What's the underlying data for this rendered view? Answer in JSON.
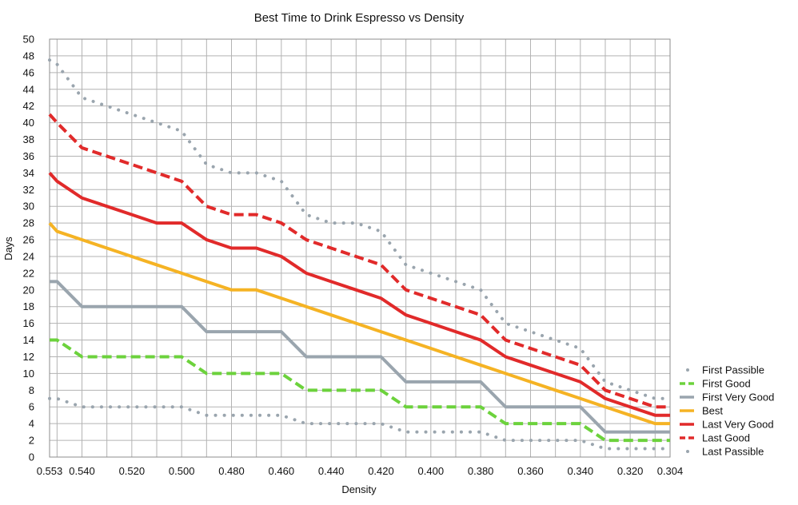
{
  "chart_data": {
    "type": "line",
    "title": "Best Time to Drink Espresso vs Density",
    "xlabel": "Density",
    "ylabel": "Days",
    "xlim": [
      0.553,
      0.304
    ],
    "ylim": [
      0,
      50
    ],
    "grid": true,
    "legend_position": "right",
    "x": [
      0.553,
      0.55,
      0.54,
      0.53,
      0.52,
      0.51,
      0.5,
      0.49,
      0.48,
      0.47,
      0.46,
      0.45,
      0.44,
      0.43,
      0.42,
      0.41,
      0.4,
      0.39,
      0.38,
      0.37,
      0.36,
      0.35,
      0.34,
      0.33,
      0.32,
      0.31,
      0.304
    ],
    "x_tick_labels": [
      "0.553",
      "0.540",
      "0.520",
      "0.500",
      "0.480",
      "0.460",
      "0.440",
      "0.420",
      "0.400",
      "0.380",
      "0.360",
      "0.340",
      "0.320",
      "0.304"
    ],
    "x_tick_values": [
      0.553,
      0.54,
      0.52,
      0.5,
      0.48,
      0.46,
      0.44,
      0.42,
      0.4,
      0.38,
      0.36,
      0.34,
      0.32,
      0.304
    ],
    "y_tick_labels": [
      "0",
      "2",
      "4",
      "6",
      "8",
      "10",
      "12",
      "14",
      "16",
      "18",
      "20",
      "22",
      "24",
      "26",
      "28",
      "30",
      "32",
      "34",
      "36",
      "38",
      "40",
      "42",
      "44",
      "46",
      "48",
      "50"
    ],
    "series": [
      {
        "name": "First Passible",
        "color": "#9aa5ae",
        "style": "dotted-light",
        "values": [
          7,
          7,
          6,
          6,
          6,
          6,
          6,
          5,
          5,
          5,
          5,
          4,
          4,
          4,
          4,
          3,
          3,
          3,
          3,
          2,
          2,
          2,
          2,
          1,
          1,
          1,
          1
        ]
      },
      {
        "name": "First Good",
        "color": "#6cd23c",
        "style": "dashed",
        "values": [
          14,
          14,
          12,
          12,
          12,
          12,
          12,
          10,
          10,
          10,
          10,
          8,
          8,
          8,
          8,
          6,
          6,
          6,
          6,
          4,
          4,
          4,
          4,
          2,
          2,
          2,
          2
        ]
      },
      {
        "name": "First Very Good",
        "color": "#9aa5ae",
        "style": "solid",
        "values": [
          21,
          21,
          18,
          18,
          18,
          18,
          18,
          15,
          15,
          15,
          15,
          12,
          12,
          12,
          12,
          9,
          9,
          9,
          9,
          6,
          6,
          6,
          6,
          3,
          3,
          3,
          3
        ]
      },
      {
        "name": "Best",
        "color": "#f5b324",
        "style": "solid",
        "values": [
          28,
          27,
          26,
          25,
          24,
          23,
          22,
          21,
          20,
          20,
          19,
          18,
          17,
          16,
          15,
          14,
          13,
          12,
          11,
          10,
          9,
          8,
          7,
          6,
          5,
          4,
          4
        ]
      },
      {
        "name": "Last Very Good",
        "color": "#e12a2a",
        "style": "solid",
        "values": [
          34,
          33,
          31,
          30,
          29,
          28,
          28,
          26,
          25,
          25,
          24,
          22,
          21,
          20,
          19,
          17,
          16,
          15,
          14,
          12,
          11,
          10,
          9,
          7,
          6,
          5,
          5
        ]
      },
      {
        "name": "Last Good",
        "color": "#e12a2a",
        "style": "dashed",
        "values": [
          41,
          40,
          37,
          36,
          35,
          34,
          33,
          30,
          29,
          29,
          28,
          26,
          25,
          24,
          23,
          20,
          19,
          18,
          17,
          14,
          13,
          12,
          11,
          8,
          7,
          6,
          6
        ]
      },
      {
        "name": "Last Passible",
        "color": "#9aa5ae",
        "style": "dotted",
        "values": [
          47.5,
          47,
          43,
          42,
          41,
          40,
          39,
          35,
          34,
          34,
          33,
          29,
          28,
          28,
          27,
          23,
          22,
          21,
          20,
          16,
          15,
          14,
          13,
          9,
          8,
          7,
          7
        ]
      }
    ]
  }
}
